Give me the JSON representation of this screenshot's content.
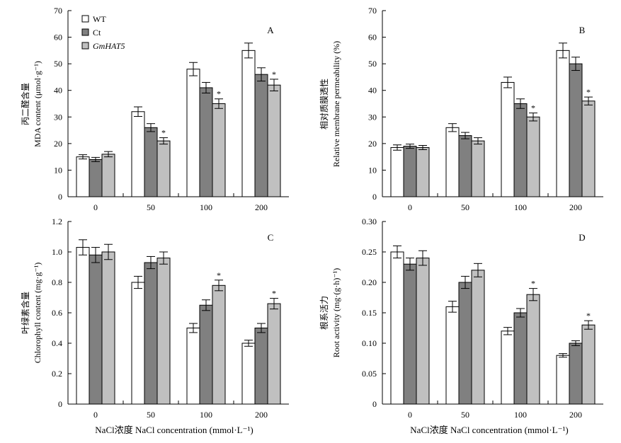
{
  "colors": {
    "WT": "#ffffff",
    "Ct": "#808080",
    "GmHAT5": "#c0c0c0",
    "stroke": "#000000"
  },
  "legend": [
    {
      "name": "WT",
      "italic": false
    },
    {
      "name": "Ct",
      "italic": false
    },
    {
      "name": "GmHAT5",
      "italic": true
    }
  ],
  "xlabel": "NaCl浓度 NaCl concentration (mmol·L⁻¹)",
  "chart_data": [
    {
      "panel": "A",
      "type": "bar",
      "ylabel_cn": "丙二醛含量",
      "ylabel_en": "MDA content (μmol·g⁻¹)",
      "categories": [
        "0",
        "50",
        "100",
        "200"
      ],
      "ylim": [
        0,
        70
      ],
      "yticks": [
        0,
        10,
        20,
        30,
        40,
        50,
        60,
        70
      ],
      "ytick_labels": [
        "0",
        "10",
        "20",
        "30",
        "40",
        "50",
        "60",
        "70"
      ],
      "series": [
        {
          "name": "WT",
          "values": [
            15,
            32,
            48,
            55
          ],
          "errors": [
            0.8,
            1.8,
            2.5,
            2.8
          ]
        },
        {
          "name": "Ct",
          "values": [
            14,
            26,
            41,
            46
          ],
          "errors": [
            0.8,
            1.5,
            2.0,
            2.5
          ]
        },
        {
          "name": "GmHAT5",
          "values": [
            16,
            21,
            35,
            42
          ],
          "errors": [
            1.0,
            1.2,
            1.8,
            2.2
          ]
        }
      ],
      "significance": [
        {
          "category": "50",
          "series": "GmHAT5",
          "mark": "*"
        },
        {
          "category": "100",
          "series": "GmHAT5",
          "mark": "*"
        },
        {
          "category": "200",
          "series": "GmHAT5",
          "mark": "*"
        }
      ]
    },
    {
      "panel": "B",
      "type": "bar",
      "ylabel_cn": "相对质膜透性",
      "ylabel_en": "Relative membrane permeability (%)",
      "categories": [
        "0",
        "50",
        "100",
        "200"
      ],
      "ylim": [
        0,
        70
      ],
      "yticks": [
        0,
        10,
        20,
        30,
        40,
        50,
        60,
        70
      ],
      "ytick_labels": [
        "0",
        "10",
        "20",
        "30",
        "40",
        "50",
        "60",
        "70"
      ],
      "series": [
        {
          "name": "WT",
          "values": [
            18.5,
            26,
            43,
            55
          ],
          "errors": [
            1.0,
            1.5,
            2.0,
            2.8
          ]
        },
        {
          "name": "Ct",
          "values": [
            19,
            23,
            35,
            50
          ],
          "errors": [
            0.8,
            1.2,
            1.8,
            2.5
          ]
        },
        {
          "name": "GmHAT5",
          "values": [
            18.5,
            21,
            30,
            36
          ],
          "errors": [
            0.8,
            1.2,
            1.5,
            1.5
          ]
        }
      ],
      "significance": [
        {
          "category": "100",
          "series": "GmHAT5",
          "mark": "*"
        },
        {
          "category": "200",
          "series": "GmHAT5",
          "mark": "*"
        }
      ]
    },
    {
      "panel": "C",
      "type": "bar",
      "ylabel_cn": "叶绿素含量",
      "ylabel_en": "Chlorophyll content (mg·g⁻¹)",
      "categories": [
        "0",
        "50",
        "100",
        "200"
      ],
      "ylim": [
        0,
        1.2
      ],
      "yticks": [
        0,
        0.2,
        0.4,
        0.6,
        0.8,
        1.0,
        1.2
      ],
      "ytick_labels": [
        "0",
        "0.2",
        "0.4",
        "0.6",
        "0.8",
        "1.0",
        "1.2"
      ],
      "series": [
        {
          "name": "WT",
          "values": [
            1.03,
            0.8,
            0.5,
            0.4
          ],
          "errors": [
            0.05,
            0.04,
            0.03,
            0.02
          ]
        },
        {
          "name": "Ct",
          "values": [
            0.98,
            0.93,
            0.65,
            0.5
          ],
          "errors": [
            0.05,
            0.04,
            0.035,
            0.03
          ]
        },
        {
          "name": "GmHAT5",
          "values": [
            1.0,
            0.96,
            0.78,
            0.66
          ],
          "errors": [
            0.05,
            0.04,
            0.035,
            0.035
          ]
        }
      ],
      "significance": [
        {
          "category": "100",
          "series": "GmHAT5",
          "mark": "*"
        },
        {
          "category": "200",
          "series": "GmHAT5",
          "mark": "*"
        }
      ]
    },
    {
      "panel": "D",
      "type": "bar",
      "ylabel_cn": "根系活力",
      "ylabel_en": "Root activity (mg·(g·h)⁻¹)",
      "categories": [
        "0",
        "50",
        "100",
        "200"
      ],
      "ylim": [
        0,
        0.3
      ],
      "yticks": [
        0,
        0.05,
        0.1,
        0.15,
        0.2,
        0.25,
        0.3
      ],
      "ytick_labels": [
        "0",
        "0.05",
        "0.10",
        "0.15",
        "0.20",
        "0.25",
        "0.30"
      ],
      "series": [
        {
          "name": "WT",
          "values": [
            0.25,
            0.16,
            0.12,
            0.08
          ],
          "errors": [
            0.01,
            0.009,
            0.006,
            0.003
          ]
        },
        {
          "name": "Ct",
          "values": [
            0.23,
            0.2,
            0.15,
            0.1
          ],
          "errors": [
            0.01,
            0.01,
            0.007,
            0.004
          ]
        },
        {
          "name": "GmHAT5",
          "values": [
            0.24,
            0.22,
            0.18,
            0.13
          ],
          "errors": [
            0.012,
            0.011,
            0.01,
            0.007
          ]
        }
      ],
      "significance": [
        {
          "category": "100",
          "series": "GmHAT5",
          "mark": "*"
        },
        {
          "category": "200",
          "series": "GmHAT5",
          "mark": "*"
        }
      ]
    }
  ]
}
